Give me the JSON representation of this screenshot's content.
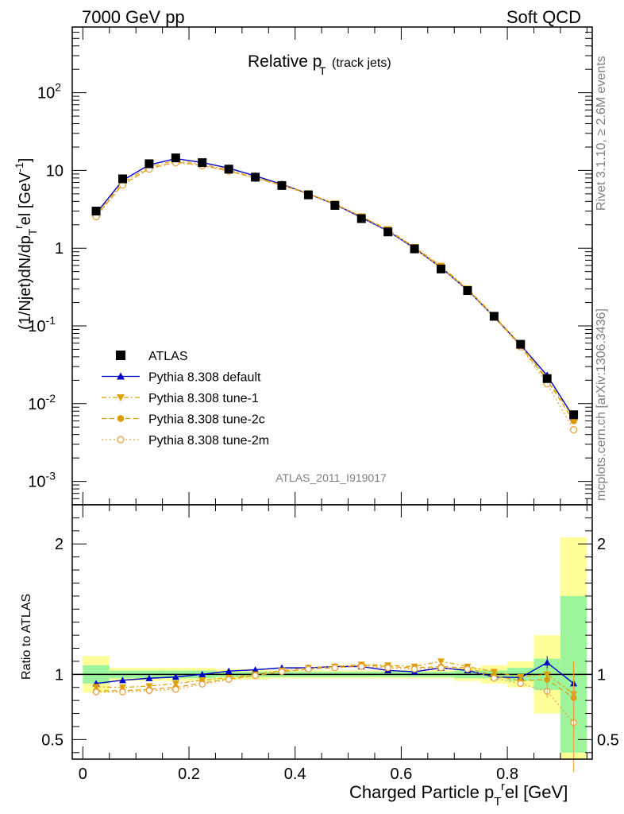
{
  "header": {
    "left": "7000 GeV pp",
    "right": "Soft QCD"
  },
  "side_text": {
    "top": "Rivet 3.1.10, ≥ 2.6M events",
    "bottom": "mcplots.cern.ch [arXiv:1306.3436]"
  },
  "chart_data": {
    "type": "line",
    "title": "Relative p_T (track jets)",
    "title_main": "Relative p",
    "title_sub": "T",
    "title_note": "(track jets)",
    "analysis_label": "ATLAS_2011_I919017",
    "xlabel": "Charged Particle p_T^rel [GeV]",
    "ylabel": "(1/Njet)dN/dp_T^rel [GeV^-1]",
    "ratio_ylabel": "Ratio to ATLAS",
    "xlim": [
      -0.02,
      0.96
    ],
    "ylim_main": [
      0.0005,
      700
    ],
    "ylog": true,
    "ylim_ratio": [
      0.35,
      2.3
    ],
    "x_ticks": [
      "0",
      "0.2",
      "0.4",
      "0.6",
      "0.8"
    ],
    "x_tick_values": [
      0,
      0.2,
      0.4,
      0.6,
      0.8
    ],
    "y_ticks_main": [
      "10^-3",
      "10^-2",
      "10^-1",
      "1",
      "10",
      "10^2"
    ],
    "y_ticks_ratio": [
      "0.5",
      "1",
      "2"
    ],
    "x": [
      0.025,
      0.075,
      0.125,
      0.175,
      0.225,
      0.275,
      0.325,
      0.375,
      0.425,
      0.475,
      0.525,
      0.575,
      0.625,
      0.675,
      0.725,
      0.775,
      0.825,
      0.875,
      0.925
    ],
    "bin_edges": [
      0.0,
      0.05,
      0.1,
      0.15,
      0.2,
      0.25,
      0.3,
      0.35,
      0.4,
      0.45,
      0.5,
      0.55,
      0.6,
      0.65,
      0.7,
      0.75,
      0.8,
      0.85,
      0.9,
      0.95
    ],
    "data_series": {
      "name": "ATLAS",
      "values": [
        3.0,
        7.8,
        12.2,
        14.5,
        12.6,
        10.4,
        8.2,
        6.4,
        4.85,
        3.55,
        2.4,
        1.62,
        0.98,
        0.54,
        0.285,
        0.133,
        0.058,
        0.021,
        0.0072
      ],
      "band_inner": [
        0.07,
        0.03,
        0.03,
        0.03,
        0.03,
        0.02,
        0.02,
        0.02,
        0.02,
        0.02,
        0.02,
        0.02,
        0.02,
        0.02,
        0.03,
        0.03,
        0.05,
        0.12,
        0.6
      ],
      "band_outer": [
        0.14,
        0.05,
        0.05,
        0.05,
        0.05,
        0.04,
        0.04,
        0.03,
        0.03,
        0.03,
        0.03,
        0.03,
        0.03,
        0.03,
        0.05,
        0.07,
        0.1,
        0.3,
        1.05
      ]
    },
    "series": [
      {
        "name": "Pythia 8.308 default",
        "color": "#0000cc",
        "marker": "triangle-up",
        "dash": "solid",
        "values": [
          2.8,
          7.45,
          11.8,
          14.2,
          12.65,
          10.7,
          8.5,
          6.65,
          5.0,
          3.66,
          2.48,
          1.66,
          1.0,
          0.56,
          0.29,
          0.131,
          0.057,
          0.023,
          0.0067
        ],
        "ratio": [
          0.93,
          0.955,
          0.97,
          0.98,
          1.0,
          1.025,
          1.035,
          1.05,
          1.05,
          1.06,
          1.06,
          1.03,
          1.02,
          1.05,
          1.03,
          0.98,
          0.975,
          1.09,
          0.93
        ]
      },
      {
        "name": "Pythia 8.308 tune-1",
        "color": "#e0a000",
        "marker": "triangle-down",
        "dash": "dashdot",
        "values": [
          2.7,
          7.0,
          11.1,
          13.5,
          12.0,
          10.1,
          8.1,
          6.55,
          5.05,
          3.73,
          2.55,
          1.74,
          1.03,
          0.59,
          0.3,
          0.136,
          0.057,
          0.021,
          0.0065
        ],
        "ratio": [
          0.905,
          0.9,
          0.91,
          0.93,
          0.955,
          0.975,
          1.0,
          1.03,
          1.05,
          1.06,
          1.075,
          1.07,
          1.06,
          1.1,
          1.06,
          1.02,
          0.98,
          1.0,
          0.85
        ]
      },
      {
        "name": "Pythia 8.308 tune-2c",
        "color": "#e09a00",
        "marker": "circle",
        "dash": "dashed",
        "values": [
          2.6,
          6.6,
          10.6,
          12.9,
          11.6,
          9.9,
          8.0,
          6.45,
          5.0,
          3.7,
          2.55,
          1.7,
          1.02,
          0.57,
          0.295,
          0.132,
          0.055,
          0.02,
          0.006
        ],
        "ratio": [
          0.875,
          0.875,
          0.885,
          0.9,
          0.935,
          0.965,
          0.99,
          1.02,
          1.04,
          1.05,
          1.07,
          1.06,
          1.05,
          1.06,
          1.05,
          0.99,
          0.95,
          0.96,
          0.82
        ]
      },
      {
        "name": "Pythia 8.308 tune-2m",
        "color": "#e8a040",
        "marker": "open-circle",
        "dash": "dotted",
        "values": [
          2.55,
          6.5,
          10.4,
          12.6,
          11.5,
          9.8,
          7.95,
          6.4,
          4.95,
          3.65,
          2.52,
          1.68,
          1.0,
          0.56,
          0.29,
          0.13,
          0.054,
          0.018,
          0.0046
        ],
        "ratio": [
          0.865,
          0.865,
          0.875,
          0.885,
          0.925,
          0.96,
          0.99,
          1.02,
          1.04,
          1.05,
          1.06,
          1.05,
          1.04,
          1.05,
          1.04,
          0.97,
          0.93,
          0.87,
          0.63
        ]
      }
    ],
    "band_colors": {
      "inner": "#9cf59c",
      "outer": "#ffff99"
    },
    "legend_placement": "bottom-left of upper panel"
  }
}
